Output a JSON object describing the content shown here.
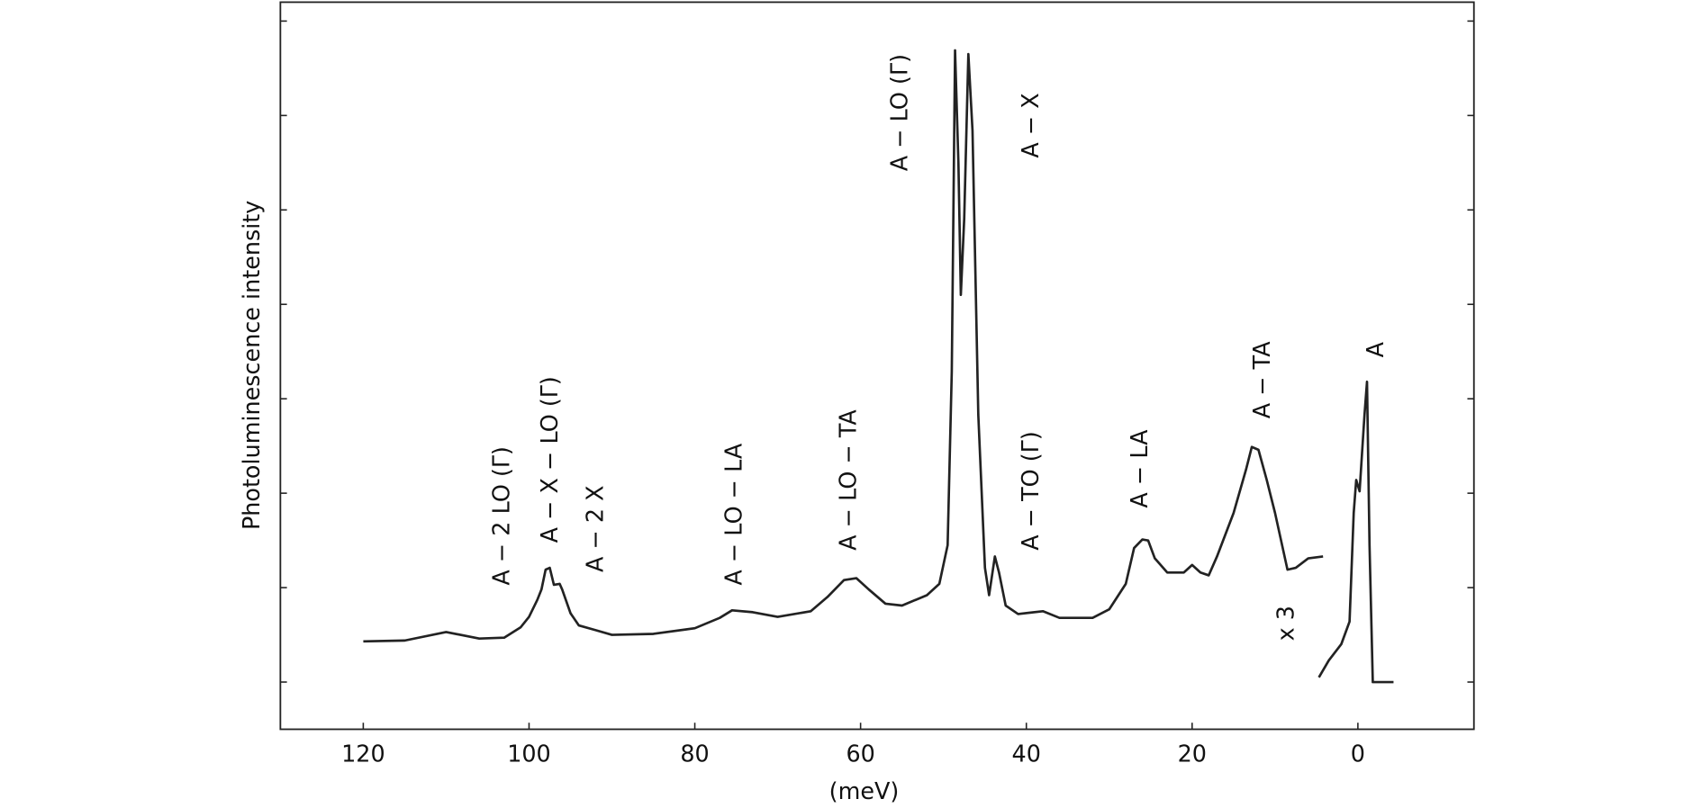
{
  "chart_data": {
    "type": "line",
    "xlabel": "(meV)",
    "ylabel": "Photoluminescence intensity",
    "xlim": [
      130,
      -14
    ],
    "xticks": [
      120,
      100,
      80,
      60,
      40,
      20,
      0
    ],
    "ylim": [
      -0.5,
      7.2
    ],
    "yticks": [
      0,
      1,
      2,
      3,
      4,
      5,
      6,
      7
    ],
    "series": [
      {
        "color": "#222222",
        "x": [
          120,
          115,
          110,
          106,
          103,
          101,
          100,
          99,
          98.5,
          98,
          97.5,
          97,
          96.3,
          96,
          95,
          94,
          92,
          90,
          85,
          80,
          77,
          75.5,
          73,
          70,
          66,
          64,
          62,
          60.5,
          59,
          57,
          55,
          52,
          50.5,
          49.5,
          49,
          48.6,
          48.2,
          47.9,
          47.5,
          47,
          46.5,
          45.8,
          45,
          44.5,
          43.8,
          43.3,
          42.5,
          41,
          38,
          36,
          32,
          30,
          28,
          27,
          26,
          25.3,
          24.5,
          23,
          21,
          20,
          19,
          18,
          17,
          15,
          13.5,
          12.8,
          12,
          11,
          10,
          8.5,
          7.5,
          6,
          4.2
        ],
        "values": [
          0.43,
          0.44,
          0.53,
          0.46,
          0.47,
          0.58,
          0.69,
          0.87,
          0.98,
          1.19,
          1.21,
          1.03,
          1.04,
          0.98,
          0.73,
          0.6,
          0.55,
          0.5,
          0.51,
          0.57,
          0.68,
          0.76,
          0.74,
          0.69,
          0.75,
          0.9,
          1.08,
          1.1,
          0.98,
          0.83,
          0.81,
          0.92,
          1.04,
          1.45,
          3.29,
          6.69,
          5.49,
          4.1,
          4.91,
          6.65,
          5.84,
          2.83,
          1.21,
          0.92,
          1.33,
          1.16,
          0.81,
          0.72,
          0.75,
          0.68,
          0.68,
          0.77,
          1.04,
          1.42,
          1.51,
          1.5,
          1.31,
          1.16,
          1.16,
          1.24,
          1.16,
          1.13,
          1.33,
          1.79,
          2.25,
          2.49,
          2.46,
          2.14,
          1.79,
          1.19,
          1.21,
          1.31,
          1.33
        ]
      },
      {
        "color": "#222222",
        "x": [
          4.7,
          3.5,
          2,
          1,
          0.5,
          0.2,
          -0.2,
          -0.8,
          -1.1,
          -1.4,
          -1.8,
          -4.3
        ],
        "values": [
          0.05,
          0.23,
          0.4,
          0.64,
          1.79,
          2.14,
          2.02,
          2.83,
          3.18,
          1.45,
          0,
          0
        ]
      }
    ],
    "annotations": [
      "A − 2 LO (Γ)",
      "A − X − LO (Γ)",
      "A − 2 X",
      "A − LO − LA",
      "A − LO − TA",
      "A − LO (Γ)",
      "A − X",
      "A − TO (Γ)",
      "A − LA",
      "A − TA",
      "A",
      "x 3"
    ]
  }
}
